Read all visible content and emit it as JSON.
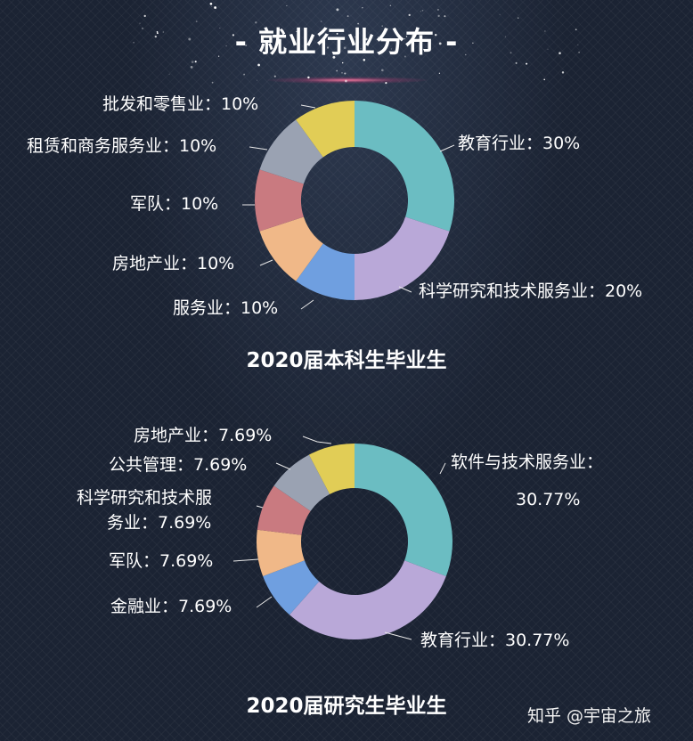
{
  "header": {
    "title": "- 就业行业分布 -"
  },
  "watermark": "知乎 @宇宙之旅",
  "colors": {
    "teal": "#6bbdc2",
    "lavender": "#b9a8d8",
    "blue": "#6f9fe0",
    "peach": "#f0b888",
    "rose": "#c97a80",
    "gray": "#9aa2b2",
    "yellow": "#e1cd56"
  },
  "chart_data": [
    {
      "type": "pie",
      "donut": true,
      "subtitle": "2020届本科生毕业生",
      "slices": [
        {
          "name": "教育行业",
          "value": 30,
          "label": "教育行业：30%",
          "color": "#6bbdc2"
        },
        {
          "name": "科学研究和技术服务业",
          "value": 20,
          "label": "科学研究和技术服务业：20%",
          "color": "#b9a8d8"
        },
        {
          "name": "服务业",
          "value": 10,
          "label": "服务业：10%",
          "color": "#6f9fe0"
        },
        {
          "name": "房地产业",
          "value": 10,
          "label": "房地产业：10%",
          "color": "#f0b888"
        },
        {
          "name": "军队",
          "value": 10,
          "label": "军队：10%",
          "color": "#c97a80"
        },
        {
          "name": "租赁和商务服务业",
          "value": 10,
          "label": "租赁和商务服务业：10%",
          "color": "#9aa2b2"
        },
        {
          "name": "批发和零售业",
          "value": 10,
          "label": "批发和零售业：10%",
          "color": "#e1cd56"
        }
      ]
    },
    {
      "type": "pie",
      "donut": true,
      "subtitle": "2020届研究生毕业生",
      "slices": [
        {
          "name": "软件与技术服务业",
          "value": 30.77,
          "label_line1": "软件与技术服务业：",
          "label_line2": "30.77%",
          "color": "#6bbdc2"
        },
        {
          "name": "教育行业",
          "value": 30.77,
          "label": "教育行业：30.77%",
          "color": "#b9a8d8"
        },
        {
          "name": "金融业",
          "value": 7.69,
          "label": "金融业：7.69%",
          "color": "#6f9fe0"
        },
        {
          "name": "军队",
          "value": 7.69,
          "label": "军队：7.69%",
          "color": "#f0b888"
        },
        {
          "name": "科学研究和技术服务业",
          "value": 7.69,
          "label_line1": "科学研究和技术服",
          "label_line2": "务业：7.69%",
          "color": "#c97a80"
        },
        {
          "name": "公共管理",
          "value": 7.69,
          "label": "公共管理：7.69%",
          "color": "#9aa2b2"
        },
        {
          "name": "房地产业",
          "value": 7.69,
          "label": "房地产业：7.69%",
          "color": "#e1cd56"
        }
      ]
    }
  ]
}
